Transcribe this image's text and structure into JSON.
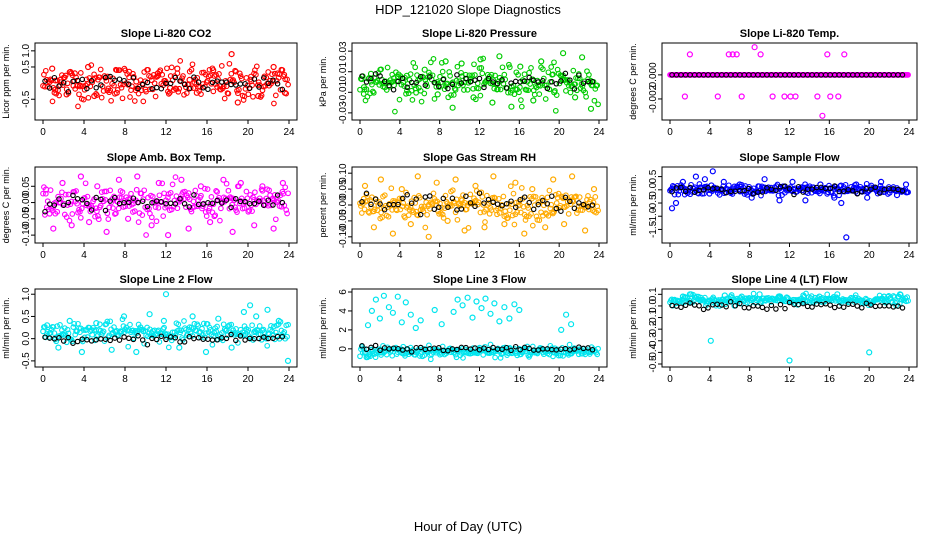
{
  "figure": {
    "title": "HDP_121020  Slope Diagnostics",
    "xlabel": "Hour of Day (UTC)"
  },
  "chart_data": [
    {
      "type": "scatter",
      "title": "Slope Li-820 CO2",
      "ylabel": "Licor ppm per min.",
      "color": "#ff0000",
      "xlim": [
        0,
        24
      ],
      "ylim": [
        -1.05,
        1.15
      ],
      "xticks": [
        "0",
        "4",
        "8",
        "12",
        "16",
        "20",
        "24"
      ],
      "yticks": [
        -0.5,
        0.5,
        1.0
      ],
      "ytick_labels": [
        "-0.5",
        "0.5",
        "1.0"
      ],
      "x": [
        0.9,
        1.2,
        1.7,
        2.3,
        3.1,
        3.6,
        4.4,
        5.0,
        6.3,
        7.2,
        8.4,
        9.1,
        10.0,
        11.2,
        12.4,
        13.1,
        14.3,
        15.0,
        16.6,
        17.3,
        18.4,
        19.0,
        20.3,
        21.0,
        22.5,
        23.6
      ],
      "values": [
        0.45,
        -0.2,
        0.1,
        -0.35,
        0.3,
        -0.1,
        0.5,
        -0.4,
        0.2,
        -0.3,
        0.35,
        0.05,
        -0.2,
        0.3,
        -0.15,
        0.45,
        0.1,
        -0.3,
        0.4,
        -0.1,
        0.9,
        -0.6,
        0.2,
        -0.4,
        0.5,
        -0.3
      ],
      "dense": {
        "mean": 0.0,
        "spread": 0.5
      },
      "black": {
        "mean": 0.0,
        "spread": 0.35
      }
    },
    {
      "type": "scatter",
      "title": "Slope Li-820 Pressure",
      "ylabel": "kPa per min.",
      "color": "#00cc00",
      "xlim": [
        0,
        24
      ],
      "ylim": [
        -0.034,
        0.035
      ],
      "xticks": [
        "0",
        "4",
        "8",
        "12",
        "16",
        "20",
        "24"
      ],
      "yticks": [
        -0.03,
        -0.01,
        0.01,
        0.03
      ],
      "ytick_labels": [
        "-0.03",
        "-0.01",
        "0.01",
        "0.03"
      ],
      "x": [
        0.4,
        1.1,
        2.2,
        3.4,
        4.7,
        5.6,
        6.5,
        7.8,
        8.6,
        9.3,
        10.2,
        11.4,
        12.1,
        13.3,
        14.0,
        15.2,
        16.1,
        17.4,
        18.2,
        19.5,
        20.4,
        21.6,
        22.3,
        23.2
      ],
      "values": [
        -0.005,
        0.008,
        0.002,
        -0.003,
        0.006,
        -0.006,
        0.012,
        -0.012,
        0.02,
        -0.025,
        0.018,
        -0.015,
        0.022,
        -0.02,
        0.025,
        -0.024,
        0.015,
        -0.018,
        0.02,
        -0.01,
        0.028,
        -0.015,
        0.024,
        -0.026
      ],
      "dense": {
        "mean": 0.0,
        "spread": 0.015
      },
      "black": {
        "mean": 0.0,
        "spread": 0.008
      }
    },
    {
      "type": "scatter",
      "title": "Slope Li-820 Temp.",
      "ylabel": "degrees C per min.",
      "color": "#ff00ff",
      "xlim": [
        0,
        24
      ],
      "ylim": [
        -0.0035,
        0.0024
      ],
      "xticks": [
        "0",
        "4",
        "8",
        "12",
        "16",
        "20",
        "24"
      ],
      "yticks": [
        -0.002,
        0.0
      ],
      "ytick_labels": [
        "-0.002",
        "0.000"
      ],
      "x": [
        1.5,
        2.0,
        4.8,
        5.9,
        6.3,
        6.7,
        7.2,
        8.5,
        9.1,
        10.3,
        11.5,
        12.1,
        12.6,
        14.8,
        15.3,
        15.8,
        16.1,
        16.9,
        17.5
      ],
      "values": [
        -0.0018,
        0.0017,
        -0.0018,
        0.0017,
        0.0017,
        0.0017,
        -0.0018,
        0.0023,
        0.0017,
        -0.0018,
        -0.0018,
        -0.0018,
        -0.0018,
        -0.0018,
        -0.0034,
        0.0017,
        -0.0018,
        -0.0018,
        0.0017
      ],
      "dense": {
        "mean": 0.0,
        "spread": 0.0
      },
      "black": {
        "mean": 0.0,
        "spread": 0.0
      }
    },
    {
      "type": "scatter",
      "title": "Slope Amb. Box Temp.",
      "ylabel": "degrees C per min.",
      "color": "#ff00ff",
      "xlim": [
        0,
        24
      ],
      "ylim": [
        -0.115,
        0.1
      ],
      "xticks": [
        "0",
        "4",
        "8",
        "12",
        "16",
        "20",
        "24"
      ],
      "yticks": [
        -0.1,
        -0.05,
        0.0,
        0.05
      ],
      "ytick_labels": [
        "-0.10",
        "-0.05",
        "0.00",
        "0.05"
      ],
      "x": [
        0.3,
        1.0,
        1.9,
        2.8,
        3.7,
        4.5,
        5.3,
        6.2,
        7.4,
        8.3,
        9.2,
        10.6,
        11.3,
        12.2,
        13.5,
        14.2,
        15.4,
        16.3,
        17.6,
        18.5,
        19.3,
        20.6,
        21.4,
        22.5,
        23.4
      ],
      "values": [
        0.04,
        -0.08,
        0.06,
        -0.07,
        0.08,
        -0.06,
        0.05,
        -0.09,
        0.07,
        -0.05,
        0.08,
        -0.07,
        0.06,
        -0.1,
        0.07,
        -0.08,
        0.05,
        -0.06,
        0.07,
        -0.09,
        0.06,
        -0.07,
        0.05,
        -0.08,
        0.06
      ],
      "dense": {
        "mean": 0.0,
        "spread": 0.045
      },
      "black": {
        "mean": 0.0,
        "spread": 0.03
      }
    },
    {
      "type": "scatter",
      "title": "Slope Gas Stream RH",
      "ylabel": "percent per min.",
      "color": "#ffaa00",
      "xlim": [
        0,
        24
      ],
      "ylim": [
        -0.11,
        0.11
      ],
      "xticks": [
        "0",
        "4",
        "8",
        "12",
        "16",
        "20",
        "24"
      ],
      "yticks": [
        -0.1,
        -0.05,
        0.0,
        0.05,
        0.1
      ],
      "ytick_labels": [
        "-0.10",
        "-0.05",
        "0.00",
        "0.05",
        "0.10"
      ],
      "x": [
        0.5,
        1.4,
        2.1,
        3.3,
        4.2,
        5.1,
        5.8,
        6.9,
        7.7,
        8.8,
        9.6,
        10.5,
        11.6,
        12.5,
        13.4,
        14.5,
        15.6,
        16.5,
        17.3,
        18.6,
        19.4,
        20.5,
        21.3,
        22.6,
        23.5
      ],
      "values": [
        0.06,
        -0.07,
        0.08,
        -0.09,
        0.05,
        -0.06,
        0.09,
        -0.1,
        0.07,
        -0.05,
        0.08,
        -0.08,
        0.06,
        -0.07,
        0.09,
        -0.06,
        0.07,
        -0.09,
        0.05,
        -0.07,
        0.08,
        -0.06,
        0.09,
        -0.08,
        0.05
      ],
      "dense": {
        "mean": 0.0,
        "spread": 0.045
      },
      "black": {
        "mean": 0.0,
        "spread": 0.035
      }
    },
    {
      "type": "scatter",
      "title": "Slope Sample Flow",
      "ylabel": "ml/min per min.",
      "color": "#0000ff",
      "xlim": [
        0,
        24
      ],
      "ylim": [
        -1.9,
        0.75
      ],
      "xticks": [
        "0",
        "4",
        "8",
        "12",
        "16",
        "20",
        "24"
      ],
      "yticks": [
        -1.5,
        -1.0,
        -0.5,
        0.0,
        0.5
      ],
      "ytick_labels": [
        "-1.5",
        "-1.0",
        "-0.5",
        "0.0",
        "0.5"
      ],
      "x": [
        0.2,
        0.6,
        1.3,
        2.6,
        3.5,
        4.3,
        5.4,
        7.0,
        8.2,
        9.5,
        11.0,
        12.3,
        13.6,
        15.1,
        16.5,
        17.2,
        17.7,
        18.7,
        19.8,
        21.2,
        22.8,
        23.7
      ],
      "values": [
        -0.7,
        -0.5,
        0.3,
        0.5,
        0.4,
        0.7,
        0.3,
        0.2,
        -0.3,
        0.4,
        -0.4,
        0.3,
        -0.4,
        0.2,
        -0.3,
        -0.5,
        -1.8,
        0.2,
        -0.3,
        0.3,
        -0.2,
        0.2
      ],
      "dense": {
        "mean": 0.0,
        "spread": 0.18
      },
      "black": {
        "mean": 0.0,
        "spread": 0.15
      }
    },
    {
      "type": "scatter",
      "title": "Slope Line 2 Flow",
      "ylabel": "ml/min per min.",
      "color": "#00e5ee",
      "xlim": [
        0,
        24
      ],
      "ylim": [
        -0.57,
        1.05
      ],
      "xticks": [
        "0",
        "4",
        "8",
        "12",
        "16",
        "20",
        "24"
      ],
      "yticks": [
        -0.5,
        0.0,
        0.5,
        1.0
      ],
      "ytick_labels": [
        "-0.5",
        "0.0",
        "0.5",
        "1.0"
      ],
      "x": [
        0.4,
        1.5,
        2.6,
        3.8,
        5.2,
        6.7,
        7.9,
        9.1,
        10.4,
        11.8,
        12.0,
        13.3,
        14.6,
        15.9,
        17.1,
        18.4,
        19.6,
        20.2,
        20.8,
        21.9,
        23.0,
        23.9
      ],
      "values": [
        0.3,
        -0.2,
        0.4,
        -0.3,
        0.35,
        -0.25,
        0.5,
        -0.3,
        0.55,
        0.4,
        1.0,
        -0.2,
        0.5,
        -0.3,
        0.45,
        -0.2,
        0.6,
        0.75,
        0.5,
        0.65,
        0.4,
        -0.5
      ],
      "dense": {
        "mean": 0.15,
        "spread": 0.2
      },
      "black": {
        "mean": 0.0,
        "spread": 0.08
      }
    },
    {
      "type": "scatter",
      "title": "Slope Line 3 Flow",
      "ylabel": "ml/min per min.",
      "color": "#00e5ee",
      "xlim": [
        0,
        24
      ],
      "ylim": [
        -1.6,
        6.0
      ],
      "xticks": [
        "0",
        "4",
        "8",
        "12",
        "16",
        "20",
        "24"
      ],
      "yticks": [
        0,
        2,
        4,
        6
      ],
      "ytick_labels": [
        "0",
        "2",
        "4",
        "6"
      ],
      "x": [
        0.8,
        1.2,
        1.6,
        2.0,
        2.4,
        2.9,
        3.3,
        3.8,
        4.2,
        4.6,
        5.1,
        5.6,
        6.1,
        7.5,
        8.2,
        9.4,
        9.8,
        10.3,
        10.8,
        11.3,
        11.7,
        12.2,
        12.6,
        13.1,
        13.5,
        14.0,
        14.5,
        15.0,
        15.5,
        16.0,
        20.2,
        20.7,
        21.2
      ],
      "values": [
        2.5,
        4.0,
        5.2,
        3.2,
        5.6,
        4.4,
        3.8,
        5.5,
        2.8,
        4.9,
        3.6,
        2.2,
        3.0,
        4.1,
        2.6,
        3.9,
        5.2,
        4.6,
        5.4,
        3.3,
        5.0,
        4.3,
        5.3,
        3.7,
        4.8,
        2.9,
        4.4,
        3.2,
        4.7,
        4.1,
        2.0,
        3.6,
        2.6
      ],
      "dense": {
        "mean": -0.3,
        "spread": 0.5
      },
      "black": {
        "mean": 0.0,
        "spread": 0.3
      }
    },
    {
      "type": "scatter",
      "title": "Slope Line 4 (LT) Flow",
      "ylabel": "ml/min per min.",
      "color": "#00e5ee",
      "xlim": [
        0,
        24
      ],
      "ylim": [
        -0.5,
        0.12
      ],
      "xticks": [
        "0",
        "4",
        "8",
        "12",
        "16",
        "20",
        "24"
      ],
      "yticks": [
        -0.5,
        -0.4,
        -0.3,
        -0.2,
        -0.1,
        0.0,
        0.1
      ],
      "ytick_labels": [
        "-0.5",
        "-0.4",
        "-0.3",
        "-0.2",
        "-0.1",
        "0.0",
        "0.1"
      ],
      "x": [
        1.3,
        2.0,
        3.1,
        4.1,
        5.5,
        7.2,
        9.0,
        10.9,
        12.0,
        13.4,
        15.0,
        16.8,
        18.6,
        20.0,
        21.5,
        23.1
      ],
      "values": [
        0.08,
        0.1,
        0.07,
        -0.3,
        0.09,
        0.08,
        0.1,
        0.07,
        -0.47,
        0.09,
        0.08,
        0.1,
        0.07,
        -0.4,
        0.08,
        0.1
      ],
      "dense": {
        "mean": 0.05,
        "spread": 0.035
      },
      "black": {
        "mean": 0.0,
        "spread": 0.03
      }
    }
  ]
}
